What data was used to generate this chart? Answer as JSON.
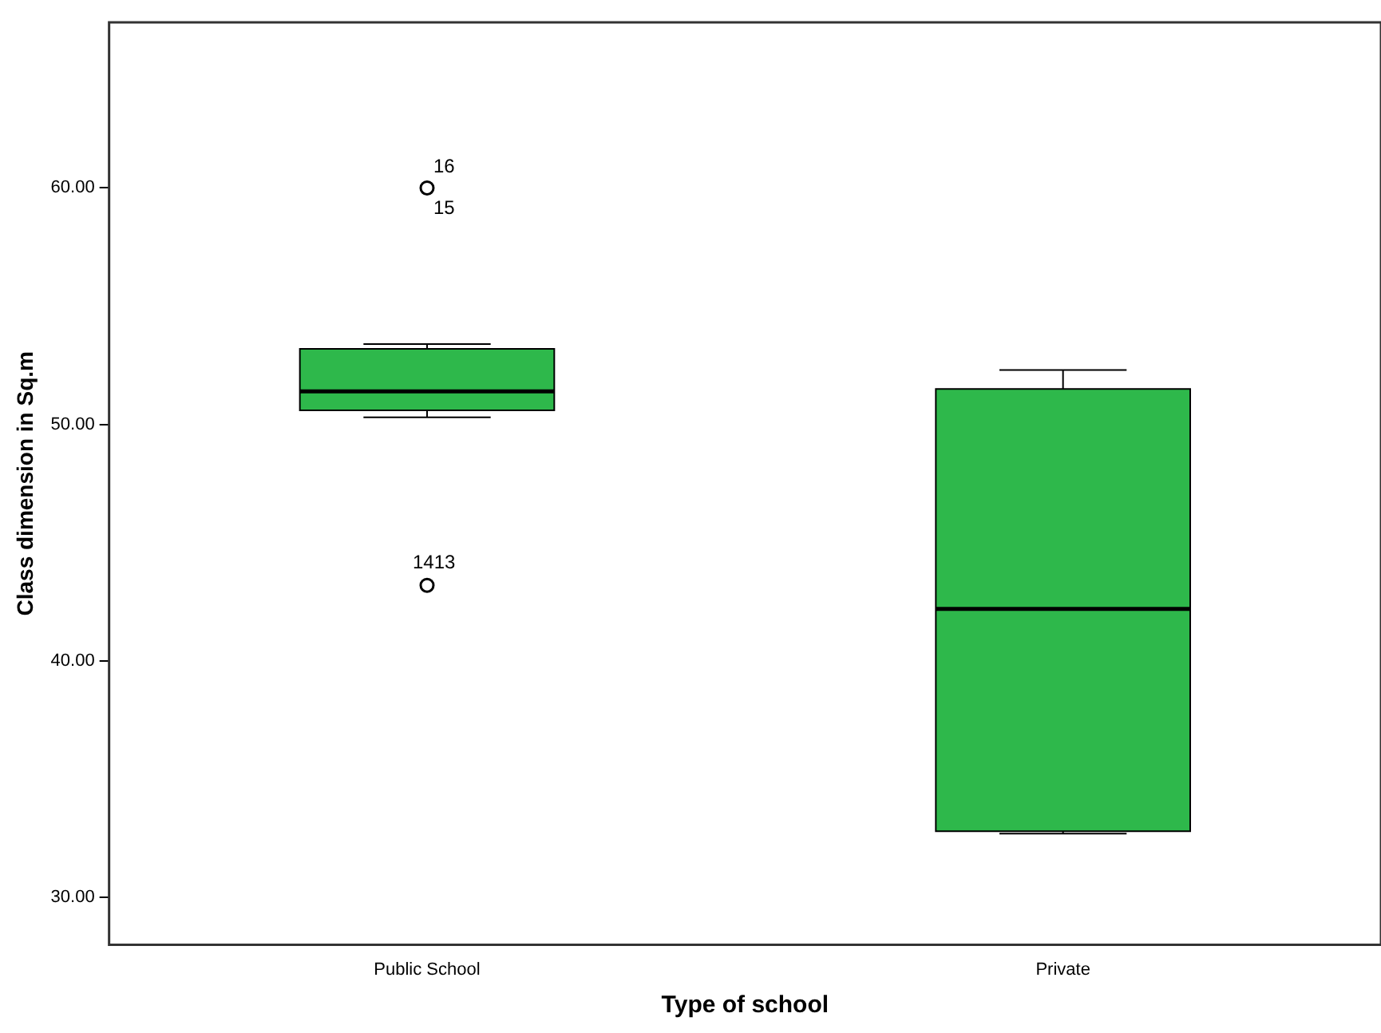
{
  "chart_data": {
    "type": "box",
    "xlabel": "Type of school",
    "ylabel": "Class dimension in Sq.m",
    "categories": [
      "Public School",
      "Private"
    ],
    "boxes": [
      {
        "low": 50.3,
        "q1": 50.6,
        "median": 51.4,
        "q3": 53.2,
        "high": 53.4,
        "outliers": [
          60.0,
          43.2
        ]
      },
      {
        "low": 32.7,
        "q1": 32.8,
        "median": 42.2,
        "q3": 51.5,
        "high": 52.3
      }
    ],
    "color": "#2eb84b",
    "ylim": [
      28,
      67
    ],
    "yticks": [
      {
        "value": 30,
        "label": "30.00"
      },
      {
        "value": 40,
        "label": "40.00"
      },
      {
        "value": 50,
        "label": "50.00"
      },
      {
        "value": 60,
        "label": "60.00"
      }
    ],
    "grid": false,
    "legend": false,
    "marker": "circle",
    "annotations": [
      "16",
      "15",
      "1413"
    ]
  }
}
